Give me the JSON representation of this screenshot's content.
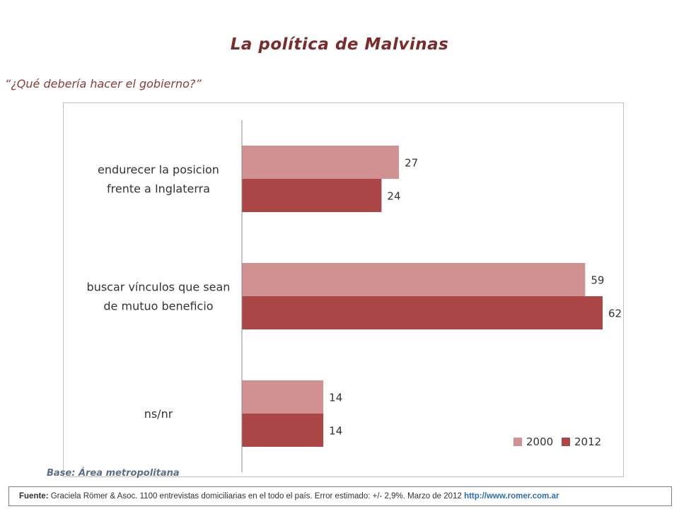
{
  "title": "La política de Malvinas",
  "question": "“¿Qué debería hacer el gobierno?”",
  "base_note": "Base: Área metropolitana",
  "source": {
    "label": "Fuente:",
    "text": " Graciela Römer & Asoc. 1100 entrevistas domiciliarias en el todo el país. Error estimado: +/- 2,9%. Marzo de 2012 ",
    "url": "http://www.romer.com.ar"
  },
  "colors": {
    "series_2000": "#d19191",
    "series_2012": "#ab4646",
    "title": "#7a2b2b"
  },
  "chart_data": {
    "type": "bar",
    "orientation": "horizontal",
    "categories": [
      [
        "endurecer la posicion",
        "frente a Inglaterra"
      ],
      [
        "buscar vínculos que sean",
        "de mutuo beneficio"
      ],
      [
        "ns/nr"
      ]
    ],
    "series": [
      {
        "name": "2000",
        "values": [
          27,
          59,
          14
        ]
      },
      {
        "name": "2012",
        "values": [
          24,
          62,
          14
        ]
      }
    ],
    "xlim": [
      0,
      62
    ],
    "grid": false,
    "data_labels": true,
    "legend_position": "bottom-right"
  }
}
